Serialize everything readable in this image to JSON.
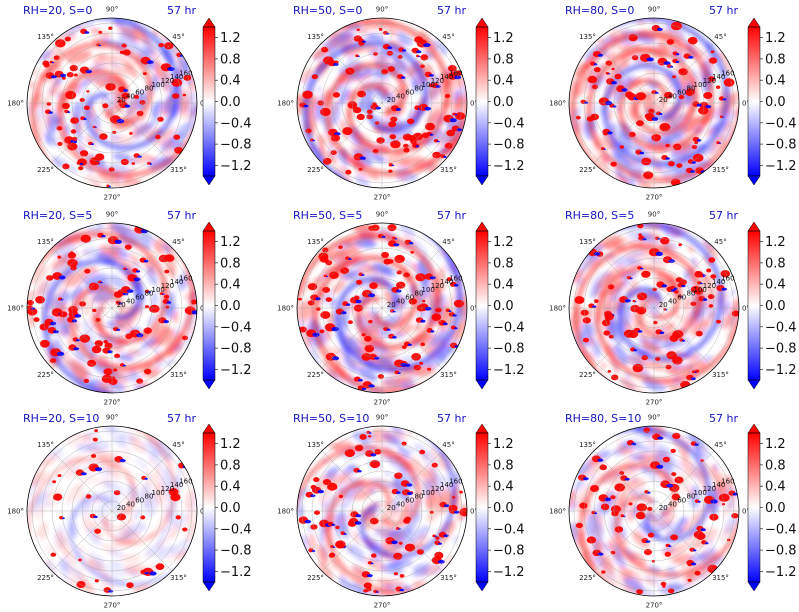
{
  "chart_data": {
    "type": "heatmap",
    "projection": "polar",
    "title": "",
    "colormap": "bwr",
    "color_low": "#0000ff",
    "color_mid": "#ffffff",
    "color_high": "#ff0000",
    "angular_ticks": [
      "0°",
      "45°",
      "90°",
      "135°",
      "180°",
      "225°",
      "270°",
      "315°"
    ],
    "radial_ticks": [
      "20",
      "40",
      "60",
      "80",
      "100",
      "120",
      "140",
      "160"
    ],
    "colorbar_ticks": [
      "1.2",
      "0.8",
      "0.4",
      "0.0",
      "−0.4",
      "−0.8",
      "−1.2"
    ],
    "colorbar_values": [
      1.2,
      0.8,
      0.4,
      0.0,
      -0.4,
      -0.8,
      -1.2
    ],
    "colorbar_range": [
      -1.4,
      1.4
    ],
    "time_label": "57 hr",
    "panels": [
      {
        "title": "RH=20, S=0",
        "rh": 20,
        "s": 0,
        "intensity": 0.9,
        "spiral": 0.8
      },
      {
        "title": "RH=50, S=0",
        "rh": 50,
        "s": 0,
        "intensity": 1.0,
        "spiral": 1.0
      },
      {
        "title": "RH=80, S=0",
        "rh": 80,
        "s": 0,
        "intensity": 0.9,
        "spiral": 1.4
      },
      {
        "title": "RH=20, S=5",
        "rh": 20,
        "s": 5,
        "intensity": 0.9,
        "spiral": 0.8
      },
      {
        "title": "RH=50, S=5",
        "rh": 50,
        "s": 5,
        "intensity": 1.0,
        "spiral": 1.0
      },
      {
        "title": "RH=80, S=5",
        "rh": 80,
        "s": 5,
        "intensity": 0.9,
        "spiral": 1.0
      },
      {
        "title": "RH=20, S=10",
        "rh": 20,
        "s": 10,
        "intensity": 0.35,
        "spiral": 0.5
      },
      {
        "title": "RH=50, S=10",
        "rh": 50,
        "s": 10,
        "intensity": 0.8,
        "spiral": 0.6
      },
      {
        "title": "RH=80, S=10",
        "rh": 80,
        "s": 10,
        "intensity": 0.8,
        "spiral": 0.6
      }
    ]
  }
}
